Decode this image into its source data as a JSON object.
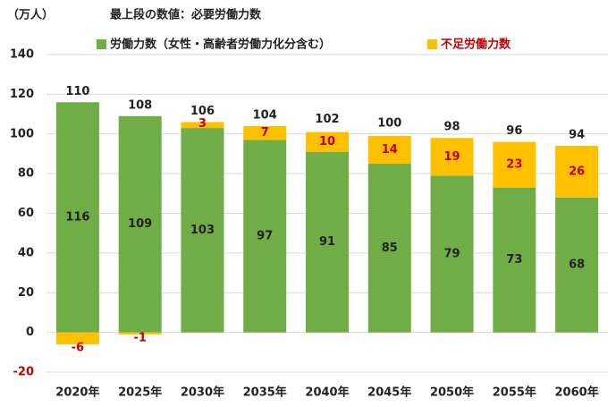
{
  "chart_data": {
    "type": "stacked-bar",
    "y_label": "（万人）",
    "title": "最上段の数値：必要労働力数",
    "categories": [
      "2020年",
      "2025年",
      "2030年",
      "2035年",
      "2040年",
      "2045年",
      "2050年",
      "2055年",
      "2060年"
    ],
    "series": [
      {
        "name": "労働力数（女性・高齢者労働力化分含む）",
        "color": "#70ad47",
        "values": [
          116,
          109,
          103,
          97,
          91,
          85,
          79,
          73,
          68
        ]
      },
      {
        "name": "不足労働力数",
        "color": "#ffc000",
        "values": [
          -6,
          -1,
          3,
          7,
          10,
          14,
          19,
          23,
          26
        ]
      }
    ],
    "totals": [
      110,
      108,
      106,
      104,
      102,
      100,
      98,
      96,
      94
    ],
    "ylim": [
      -20,
      140
    ],
    "yticks": [
      -20,
      0,
      20,
      40,
      60,
      80,
      100,
      120,
      140
    ],
    "grid": true
  }
}
